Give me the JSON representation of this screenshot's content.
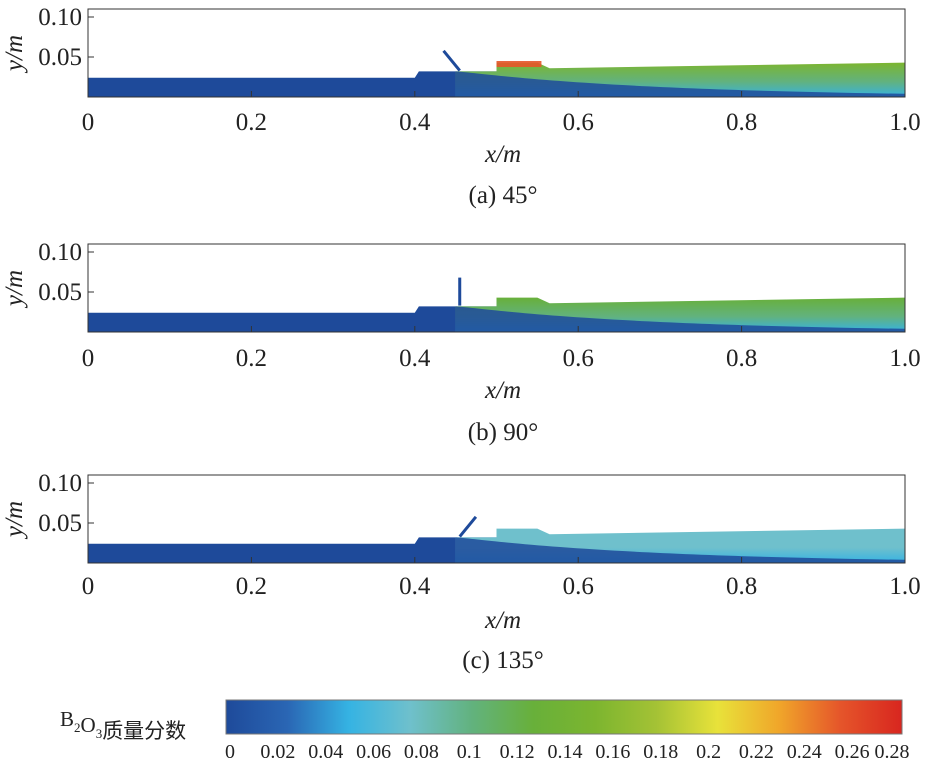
{
  "chart_data": [
    {
      "type": "heatmap",
      "title": "(a) 45°",
      "xlabel": "x/m",
      "ylabel": "y/m",
      "xlim": [
        0,
        1.0
      ],
      "ylim": [
        0,
        0.11
      ],
      "xticks": [
        "0",
        "0.2",
        "0.4",
        "0.6",
        "0.8",
        "1.0"
      ],
      "yticks": [
        "0.05",
        "0.10"
      ],
      "inlet_angle_deg": 45,
      "downstream_top_value": 0.14,
      "downstream_bottom_value": 0.06,
      "max_value_near_0_5m": 0.26
    },
    {
      "type": "heatmap",
      "title": "(b) 90°",
      "xlabel": "x/m",
      "ylabel": "y/m",
      "xlim": [
        0,
        1.0
      ],
      "ylim": [
        0,
        0.11
      ],
      "xticks": [
        "0",
        "0.2",
        "0.4",
        "0.6",
        "0.8",
        "1.0"
      ],
      "yticks": [
        "0.05",
        "0.10"
      ],
      "inlet_angle_deg": 90,
      "downstream_top_value": 0.13,
      "downstream_bottom_value": 0.06,
      "max_value_near_0_5m": 0.14
    },
    {
      "type": "heatmap",
      "title": "(c) 135°",
      "xlabel": "x/m",
      "ylabel": "y/m",
      "xlim": [
        0,
        1.0
      ],
      "ylim": [
        0,
        0.11
      ],
      "xticks": [
        "0",
        "0.2",
        "0.4",
        "0.6",
        "0.8",
        "1.0"
      ],
      "yticks": [
        "0.05",
        "0.10"
      ],
      "inlet_angle_deg": 135,
      "downstream_top_value": 0.08,
      "downstream_bottom_value": 0.06,
      "max_value_near_0_5m": 0.08
    }
  ],
  "colorbar": {
    "label_main": "B",
    "label_sub1": "2",
    "label_mid": "O",
    "label_sub2": "3",
    "label_rest": "质量分数",
    "range": [
      0,
      0.28
    ],
    "ticks": [
      "0",
      "0.02",
      "0.04",
      "0.06",
      "0.08",
      "0.1",
      "0.12",
      "0.14",
      "0.16",
      "0.18",
      "0.2",
      "0.22",
      "0.24",
      "0.26",
      "0.28"
    ],
    "colors": [
      "#1e4a9a",
      "#2a66b4",
      "#35b3e3",
      "#6fc0cc",
      "#62b27e",
      "#68b03a",
      "#7cb52f",
      "#a4c235",
      "#e8e23a",
      "#f0a62a",
      "#e5552a",
      "#d8261f"
    ]
  }
}
